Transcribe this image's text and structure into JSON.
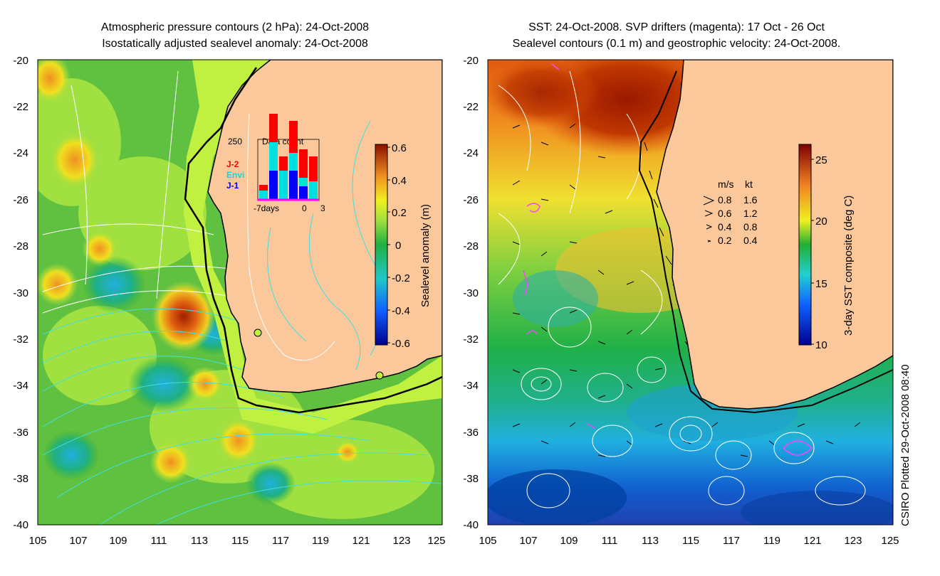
{
  "left_panel": {
    "title_line1": "Atmospheric pressure contours (2 hPa): 24-Oct-2008",
    "title_line2": "Isostatically adjusted sealevel anomaly: 24-Oct-2008",
    "colorbar": {
      "label": "Sealevel anomaly (m)",
      "ticks": [
        "0.6",
        "0.4",
        "0.2",
        "0",
        "-0.2",
        "-0.4",
        "-0.6"
      ]
    },
    "inset": {
      "title": "Data count",
      "y_max": "250",
      "x_ticks": [
        "-7days",
        "0",
        "3"
      ],
      "legend": [
        {
          "label": "J-2",
          "color": "#ff0000"
        },
        {
          "label": "Envi",
          "color": "#00e0e0"
        },
        {
          "label": "J-1",
          "color": "#0000ff"
        }
      ]
    }
  },
  "right_panel": {
    "title_line1": "SST: 24-Oct-2008. SVP drifters (magenta): 17 Oct - 26 Oct",
    "title_line2": "Sealevel contours (0.1 m) and geostrophic velocity: 24-Oct-2008.",
    "colorbar": {
      "label": "3-day SST composite (deg C)",
      "ticks": [
        "25",
        "20",
        "15",
        "10"
      ]
    },
    "speed_legend": {
      "header_ms": "m/s",
      "header_kt": "kt",
      "rows": [
        {
          "ms": "0.8",
          "kt": "1.6"
        },
        {
          "ms": "0.6",
          "kt": "1.2"
        },
        {
          "ms": "0.4",
          "kt": "0.8"
        },
        {
          "ms": "0.2",
          "kt": "0.4"
        }
      ]
    }
  },
  "axes": {
    "lon_ticks": [
      "105",
      "107",
      "109",
      "111",
      "113",
      "115",
      "117",
      "119",
      "121",
      "123",
      "125"
    ],
    "lat_ticks": [
      "-20",
      "-22",
      "-24",
      "-26",
      "-28",
      "-30",
      "-32",
      "-34",
      "-36",
      "-38",
      "-40"
    ]
  },
  "footer": "CSIRO Plotted 29-Oct-2008 08:40",
  "colors": {
    "land": "#fac89b",
    "contour_white": "#ffffff",
    "contour_cyan": "#40e0e0",
    "drifters": "#ff40ff"
  }
}
